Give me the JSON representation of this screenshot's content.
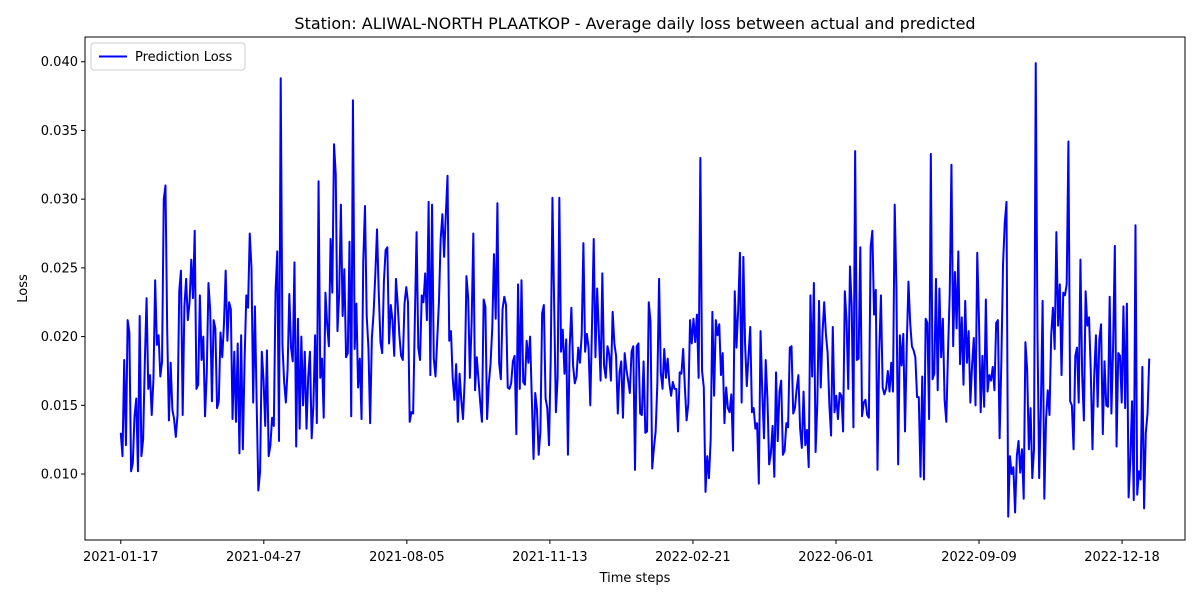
{
  "chart_data": {
    "type": "line",
    "title": "Station: ALIWAL-NORTH PLAATKOP - Average daily loss between actual and predicted",
    "xlabel": "Time steps",
    "ylabel": "Loss",
    "x_start": "2021-01-17",
    "x_end": "2023-01-06",
    "x_tick_labels": [
      "2021-01-17",
      "2021-04-27",
      "2021-08-05",
      "2021-11-13",
      "2022-02-21",
      "2022-06-01",
      "2022-09-09",
      "2022-12-18"
    ],
    "y_ticks": [
      0.01,
      0.015,
      0.02,
      0.025,
      0.03,
      0.035,
      0.04
    ],
    "y_tick_labels": [
      "0.010",
      "0.015",
      "0.020",
      "0.025",
      "0.030",
      "0.035",
      "0.040"
    ],
    "xlim": [
      "2020-12-23",
      "2023-01-31"
    ],
    "ylim": [
      0.0052,
      0.0418
    ],
    "legend_location": "upper-left",
    "grid": false,
    "series": [
      {
        "name": "Prediction Loss",
        "color": "#0000ff",
        "values": [
          0.013,
          0.0113,
          0.0183,
          0.0121,
          0.0212,
          0.0203,
          0.0102,
          0.0108,
          0.0142,
          0.0155,
          0.0102,
          0.0215,
          0.0113,
          0.0125,
          0.0182,
          0.0228,
          0.0162,
          0.0172,
          0.0143,
          0.0169,
          0.0241,
          0.0194,
          0.0201,
          0.0171,
          0.0182,
          0.03,
          0.031,
          0.0205,
          0.0139,
          0.0181,
          0.0147,
          0.014,
          0.0127,
          0.0143,
          0.0233,
          0.0248,
          0.0143,
          0.0222,
          0.0242,
          0.0212,
          0.0225,
          0.0256,
          0.0228,
          0.0277,
          0.0162,
          0.0165,
          0.023,
          0.0183,
          0.02,
          0.0142,
          0.0173,
          0.0239,
          0.0219,
          0.0153,
          0.0212,
          0.0206,
          0.0148,
          0.0153,
          0.0203,
          0.0185,
          0.0209,
          0.0248,
          0.0197,
          0.0225,
          0.022,
          0.014,
          0.0189,
          0.0138,
          0.0195,
          0.0115,
          0.0201,
          0.0118,
          0.0183,
          0.023,
          0.0221,
          0.0275,
          0.025,
          0.0152,
          0.0222,
          0.0153,
          0.0088,
          0.0102,
          0.0189,
          0.0169,
          0.0135,
          0.019,
          0.0113,
          0.0121,
          0.0141,
          0.0135,
          0.0233,
          0.0262,
          0.0124,
          0.0388,
          0.0194,
          0.0167,
          0.0152,
          0.0176,
          0.0231,
          0.0192,
          0.0182,
          0.0254,
          0.012,
          0.0213,
          0.0133,
          0.02,
          0.015,
          0.0189,
          0.0133,
          0.0171,
          0.0189,
          0.0126,
          0.015,
          0.0201,
          0.0137,
          0.0313,
          0.017,
          0.0184,
          0.0141,
          0.0232,
          0.0209,
          0.0193,
          0.0271,
          0.0232,
          0.034,
          0.0318,
          0.0204,
          0.0231,
          0.0296,
          0.0215,
          0.0249,
          0.0185,
          0.0188,
          0.0269,
          0.0142,
          0.0372,
          0.0191,
          0.0224,
          0.0163,
          0.0184,
          0.014,
          0.0255,
          0.0295,
          0.0215,
          0.0192,
          0.0137,
          0.0199,
          0.0217,
          0.0245,
          0.0278,
          0.0232,
          0.0196,
          0.0188,
          0.024,
          0.0263,
          0.0265,
          0.0195,
          0.0223,
          0.0212,
          0.0186,
          0.0242,
          0.0224,
          0.0201,
          0.0186,
          0.0183,
          0.0224,
          0.0236,
          0.0225,
          0.0138,
          0.0145,
          0.0144,
          0.0213,
          0.0276,
          0.0192,
          0.0183,
          0.023,
          0.0225,
          0.0246,
          0.0212,
          0.0298,
          0.0172,
          0.0296,
          0.0184,
          0.0171,
          0.0198,
          0.0225,
          0.0271,
          0.0289,
          0.0258,
          0.0289,
          0.0317,
          0.0197,
          0.0204,
          0.017,
          0.0154,
          0.018,
          0.0138,
          0.0173,
          0.0154,
          0.014,
          0.0169,
          0.0244,
          0.0228,
          0.017,
          0.021,
          0.0275,
          0.0161,
          0.0185,
          0.0169,
          0.0152,
          0.0138,
          0.0227,
          0.0222,
          0.014,
          0.0166,
          0.018,
          0.0206,
          0.026,
          0.0213,
          0.0297,
          0.0181,
          0.0169,
          0.022,
          0.0229,
          0.0223,
          0.0163,
          0.0162,
          0.0166,
          0.0182,
          0.0186,
          0.0129,
          0.0238,
          0.0162,
          0.0241,
          0.0167,
          0.0165,
          0.0197,
          0.0181,
          0.02,
          0.0155,
          0.0111,
          0.0159,
          0.0147,
          0.0114,
          0.0131,
          0.0217,
          0.0223,
          0.0155,
          0.0148,
          0.0121,
          0.0184,
          0.0301,
          0.0223,
          0.0145,
          0.017,
          0.0301,
          0.0189,
          0.0205,
          0.0173,
          0.0198,
          0.0114,
          0.0192,
          0.0221,
          0.0179,
          0.0166,
          0.0171,
          0.0192,
          0.0181,
          0.0201,
          0.0268,
          0.0189,
          0.0202,
          0.0192,
          0.015,
          0.0208,
          0.0271,
          0.0185,
          0.0235,
          0.0202,
          0.0168,
          0.0246,
          0.0179,
          0.017,
          0.0193,
          0.0187,
          0.0168,
          0.0218,
          0.0195,
          0.0186,
          0.0144,
          0.0174,
          0.0182,
          0.0141,
          0.0188,
          0.0176,
          0.0168,
          0.0159,
          0.0189,
          0.0193,
          0.0103,
          0.0193,
          0.0195,
          0.0144,
          0.0143,
          0.0182,
          0.013,
          0.0131,
          0.0225,
          0.0211,
          0.0104,
          0.0119,
          0.0131,
          0.0166,
          0.0242,
          0.0174,
          0.0162,
          0.0191,
          0.017,
          0.0184,
          0.0166,
          0.0157,
          0.0167,
          0.0162,
          0.0162,
          0.0131,
          0.0174,
          0.0173,
          0.0191,
          0.0163,
          0.0139,
          0.0151,
          0.0212,
          0.0195,
          0.0213,
          0.0196,
          0.0216,
          0.017,
          0.033,
          0.0175,
          0.0163,
          0.0087,
          0.0113,
          0.0097,
          0.0125,
          0.0218,
          0.0157,
          0.0212,
          0.0201,
          0.0209,
          0.0172,
          0.0188,
          0.0137,
          0.0163,
          0.0148,
          0.0145,
          0.0158,
          0.0117,
          0.0233,
          0.0192,
          0.022,
          0.0261,
          0.0152,
          0.0258,
          0.0195,
          0.0164,
          0.0186,
          0.0207,
          0.0145,
          0.0148,
          0.0133,
          0.0137,
          0.0093,
          0.0204,
          0.016,
          0.0126,
          0.0183,
          0.0155,
          0.0107,
          0.0115,
          0.0135,
          0.0098,
          0.0174,
          0.0124,
          0.016,
          0.0168,
          0.0114,
          0.0117,
          0.0137,
          0.0134,
          0.0192,
          0.0193,
          0.0144,
          0.0148,
          0.0162,
          0.0172,
          0.0133,
          0.0119,
          0.016,
          0.0121,
          0.0132,
          0.0105,
          0.023,
          0.0171,
          0.0239,
          0.0116,
          0.0151,
          0.0226,
          0.0163,
          0.0202,
          0.0225,
          0.0202,
          0.0188,
          0.0151,
          0.0128,
          0.0207,
          0.0145,
          0.0157,
          0.014,
          0.0159,
          0.0157,
          0.0131,
          0.0233,
          0.0212,
          0.0162,
          0.0251,
          0.0222,
          0.0134,
          0.0335,
          0.0183,
          0.0184,
          0.0265,
          0.0142,
          0.0152,
          0.0154,
          0.0143,
          0.0141,
          0.0265,
          0.0277,
          0.0216,
          0.0234,
          0.0103,
          0.0189,
          0.023,
          0.0163,
          0.0158,
          0.0162,
          0.0175,
          0.016,
          0.0181,
          0.016,
          0.0296,
          0.0235,
          0.0107,
          0.0201,
          0.0179,
          0.0202,
          0.0131,
          0.0193,
          0.024,
          0.021,
          0.0193,
          0.019,
          0.0185,
          0.0156,
          0.0156,
          0.0098,
          0.0171,
          0.0096,
          0.0213,
          0.021,
          0.014,
          0.0333,
          0.0169,
          0.0173,
          0.0242,
          0.0161,
          0.0235,
          0.0185,
          0.0213,
          0.0154,
          0.0138,
          0.0189,
          0.0232,
          0.0325,
          0.0193,
          0.0247,
          0.0206,
          0.0262,
          0.018,
          0.0214,
          0.0165,
          0.0226,
          0.0181,
          0.0204,
          0.0152,
          0.0179,
          0.0199,
          0.015,
          0.0261,
          0.0212,
          0.0145,
          0.0186,
          0.0149,
          0.0227,
          0.016,
          0.0172,
          0.0168,
          0.0178,
          0.0161,
          0.021,
          0.0212,
          0.0126,
          0.0181,
          0.0253,
          0.0283,
          0.0298,
          0.0069,
          0.0113,
          0.01,
          0.0105,
          0.0072,
          0.0113,
          0.0124,
          0.0101,
          0.0118,
          0.0082,
          0.0196,
          0.0176,
          0.0118,
          0.0148,
          0.0097,
          0.0118,
          0.0399,
          0.0204,
          0.0097,
          0.0148,
          0.0226,
          0.0082,
          0.014,
          0.0161,
          0.0143,
          0.0201,
          0.0221,
          0.0191,
          0.0276,
          0.0208,
          0.0238,
          0.0172,
          0.0232,
          0.023,
          0.0238,
          0.0342,
          0.0153,
          0.015,
          0.0118,
          0.0186,
          0.0192,
          0.0152,
          0.0256,
          0.0172,
          0.0139,
          0.0233,
          0.0208,
          0.0214,
          0.0175,
          0.0118,
          0.0171,
          0.0201,
          0.0149,
          0.0198,
          0.0209,
          0.0129,
          0.0182,
          0.015,
          0.0149,
          0.0229,
          0.0144,
          0.0193,
          0.0266,
          0.012,
          0.0188,
          0.0186,
          0.0152,
          0.0222,
          0.0148,
          0.0224,
          0.0083,
          0.011,
          0.0153,
          0.0081,
          0.0281,
          0.0085,
          0.0102,
          0.0096,
          0.0178,
          0.0075,
          0.013,
          0.0144,
          0.0184
        ]
      }
    ]
  }
}
